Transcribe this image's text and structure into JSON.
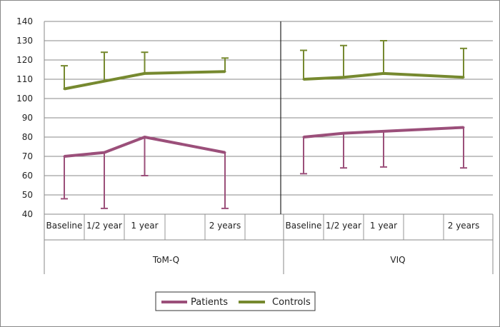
{
  "chart_data": {
    "type": "line",
    "y_ticks": [
      40,
      50,
      60,
      70,
      80,
      90,
      100,
      110,
      120,
      130,
      140
    ],
    "ylim": [
      40,
      140
    ],
    "grid": true,
    "legend_position": "bottom",
    "groups": [
      {
        "name": "ToM-Q",
        "categories": [
          "Baseline",
          "1/2 year",
          "1 year",
          "",
          "2 years",
          ""
        ],
        "points": [
          0,
          1,
          2,
          4
        ],
        "series": [
          {
            "name": "Patients",
            "color": "#9b4f7a",
            "values": [
              70,
              72,
              80,
              72
            ],
            "error": [
              22,
              29,
              20,
              29
            ],
            "error_dir": "down"
          },
          {
            "name": "Controls",
            "color": "#76892f",
            "values": [
              105,
              109,
              113,
              114
            ],
            "error": [
              12,
              15,
              11,
              7
            ],
            "error_dir": "up"
          }
        ]
      },
      {
        "name": "VIQ",
        "categories": [
          "Baseline",
          "1/2 year",
          "1 year",
          "",
          "2 years"
        ],
        "points": [
          0,
          1,
          2,
          4
        ],
        "series": [
          {
            "name": "Patients",
            "color": "#9b4f7a",
            "values": [
              80,
              82,
              83,
              85
            ],
            "error": [
              19,
              18,
              18.5,
              21
            ],
            "error_dir": "down"
          },
          {
            "name": "Controls",
            "color": "#76892f",
            "values": [
              110,
              111,
              113,
              111
            ],
            "error": [
              15,
              16.5,
              17,
              15
            ],
            "error_dir": "up"
          }
        ]
      }
    ],
    "legend": [
      {
        "label": "Patients",
        "color": "#9b4f7a"
      },
      {
        "label": "Controls",
        "color": "#76892f"
      }
    ]
  }
}
